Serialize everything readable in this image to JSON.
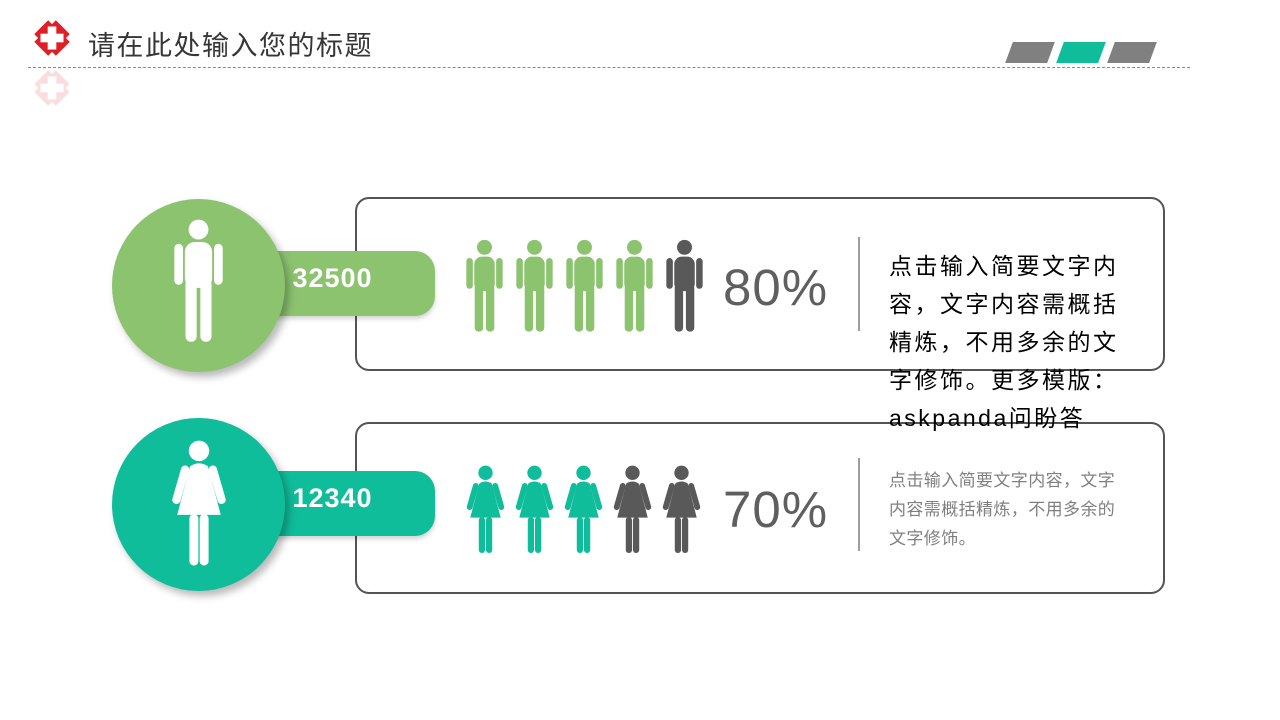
{
  "slide": {
    "title": "请在此处输入您的标题",
    "colors": {
      "green": "#8CC36F",
      "teal": "#0FBD9B",
      "figure_gray": "#595959",
      "percent_gray": "#5F5F5F",
      "logo_red": "#E01E25",
      "decor_gray": "#808080",
      "dash_blue": "#5E93BE",
      "card_border": "#545454"
    },
    "decor_bars": [
      {
        "color": "#808080"
      },
      {
        "color": "#0FBD9B"
      },
      {
        "color": "#808080"
      }
    ]
  },
  "rows": [
    {
      "gender": "male",
      "value": "32500",
      "percent": "80%",
      "icons_total": 5,
      "icons_filled": 4,
      "color": "#8CC36F",
      "lines": [
        "点击输入简要文字内",
        "容，文字内容需概括",
        "精炼，不用多余的文",
        "字修饰。更多模版：",
        "askpanda问盼答"
      ]
    },
    {
      "gender": "female",
      "value": "12340",
      "percent": "70%",
      "icons_total": 5,
      "icons_filled": 3,
      "color": "#0FBD9B",
      "lines": [
        "点击输入简要文字内容，文字",
        "内容需概括精炼，不用多余的",
        "文字修饰。"
      ]
    }
  ],
  "chart_data": {
    "type": "bar",
    "subtype": "pictograph",
    "title": "请在此处输入您的标题",
    "categories": [
      "male",
      "female"
    ],
    "series": [
      {
        "name": "value",
        "values": [
          32500,
          12340
        ]
      },
      {
        "name": "percent",
        "values": [
          80,
          70
        ]
      },
      {
        "name": "icons_filled_of_5",
        "values": [
          4,
          3
        ]
      }
    ],
    "legend_position": "none",
    "grid": false
  }
}
